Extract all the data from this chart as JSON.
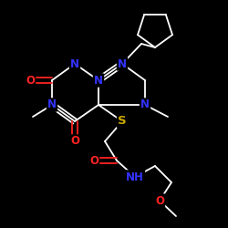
{
  "background_color": "#000000",
  "bond_color": "#ffffff",
  "atom_colors": {
    "N": "#3333ff",
    "O": "#ff2222",
    "S": "#ccaa00",
    "C": "#ffffff",
    "H": "#ffffff"
  },
  "figsize": [
    2.5,
    2.5
  ],
  "dpi": 100
}
